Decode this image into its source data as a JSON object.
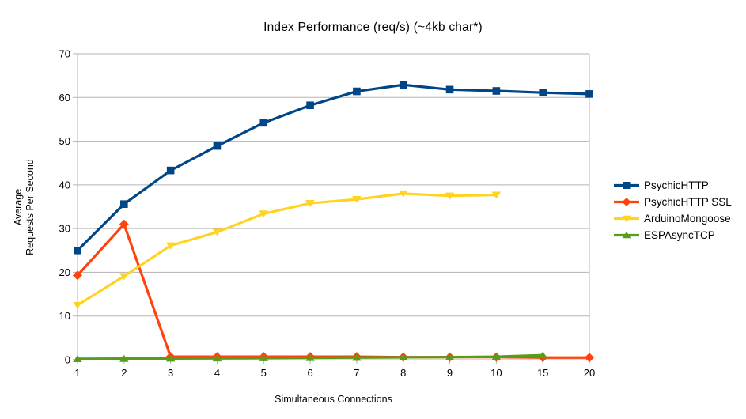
{
  "chart_data": {
    "type": "line",
    "title": "Index Performance (req/s) (~4kb char*)",
    "xlabel": "Simultaneous Connections",
    "ylabel_lines": [
      "Average",
      "Requests Per Second"
    ],
    "categories": [
      "1",
      "2",
      "3",
      "4",
      "5",
      "6",
      "7",
      "8",
      "9",
      "10",
      "15",
      "20"
    ],
    "ylim": [
      0,
      70
    ],
    "y_ticks": [
      0,
      10,
      20,
      30,
      40,
      50,
      60,
      70
    ],
    "grid": "horizontal",
    "grid_color": "#B3B3B3",
    "axis_color": "#B3B3B3",
    "text_color": "#000000",
    "background_color": "#FFFFFF",
    "legend_position": "right",
    "series": [
      {
        "name": "PsychicHTTP",
        "color": "#004586",
        "marker": "square",
        "values": [
          25.0,
          35.6,
          43.3,
          48.9,
          54.2,
          58.2,
          61.4,
          62.9,
          61.8,
          61.5,
          61.1,
          60.8
        ]
      },
      {
        "name": "PsychicHTTP SSL",
        "color": "#FF420E",
        "marker": "diamond",
        "values": [
          19.3,
          31.0,
          0.7,
          0.7,
          0.7,
          0.7,
          0.7,
          0.6,
          0.6,
          0.6,
          0.5,
          0.5
        ]
      },
      {
        "name": "ArduinoMongoose",
        "color": "#FFD320",
        "marker": "triangle-down",
        "values": [
          12.5,
          19.1,
          26.1,
          29.2,
          33.4,
          35.8,
          36.7,
          38.0,
          37.5,
          37.7,
          null,
          null
        ]
      },
      {
        "name": "ESPAsyncTCP",
        "color": "#579D1C",
        "marker": "triangle-up",
        "values": [
          0.2,
          0.25,
          0.3,
          0.35,
          0.4,
          0.45,
          0.5,
          0.55,
          0.6,
          0.7,
          1.05,
          null
        ]
      }
    ]
  }
}
